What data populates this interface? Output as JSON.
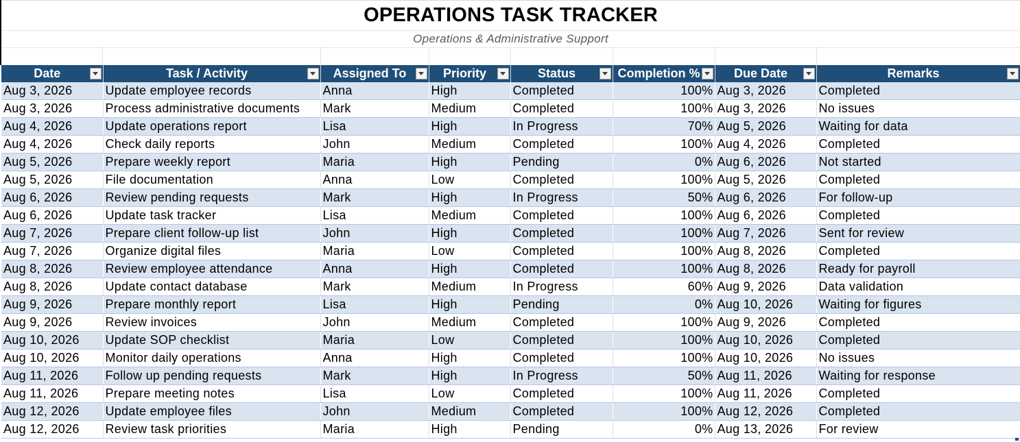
{
  "title": "OPERATIONS TASK TRACKER",
  "subtitle": "Operations & Administrative Support",
  "columns": [
    "Date",
    "Task / Activity",
    "Assigned To",
    "Priority",
    "Status",
    "Completion %",
    "Due Date",
    "Remarks"
  ],
  "rows": [
    [
      "Aug 3, 2026",
      "Update employee records",
      "Anna",
      "High",
      "Completed",
      "100%",
      "Aug 3, 2026",
      "Completed"
    ],
    [
      "Aug 3, 2026",
      "Process administrative documents",
      "Mark",
      "Medium",
      "Completed",
      "100%",
      "Aug 3, 2026",
      "No issues"
    ],
    [
      "Aug 4, 2026",
      "Update operations report",
      "Lisa",
      "High",
      "In Progress",
      "70%",
      "Aug 5, 2026",
      "Waiting for data"
    ],
    [
      "Aug 4, 2026",
      "Check daily reports",
      "John",
      "Medium",
      "Completed",
      "100%",
      "Aug 4, 2026",
      "Completed"
    ],
    [
      "Aug 5, 2026",
      "Prepare weekly report",
      "Maria",
      "High",
      "Pending",
      "0%",
      "Aug 6, 2026",
      "Not started"
    ],
    [
      "Aug 5, 2026",
      "File documentation",
      "Anna",
      "Low",
      "Completed",
      "100%",
      "Aug 5, 2026",
      "Completed"
    ],
    [
      "Aug 6, 2026",
      "Review pending requests",
      "Mark",
      "High",
      "In Progress",
      "50%",
      "Aug 6, 2026",
      "For follow-up"
    ],
    [
      "Aug 6, 2026",
      "Update task tracker",
      "Lisa",
      "Medium",
      "Completed",
      "100%",
      "Aug 6, 2026",
      "Completed"
    ],
    [
      "Aug 7, 2026",
      "Prepare client follow-up list",
      "John",
      "High",
      "Completed",
      "100%",
      "Aug 7, 2026",
      "Sent for review"
    ],
    [
      "Aug 7, 2026",
      "Organize digital files",
      "Maria",
      "Low",
      "Completed",
      "100%",
      "Aug 8, 2026",
      "Completed"
    ],
    [
      "Aug 8, 2026",
      "Review employee attendance",
      "Anna",
      "High",
      "Completed",
      "100%",
      "Aug 8, 2026",
      "Ready for payroll"
    ],
    [
      "Aug 8, 2026",
      "Update contact database",
      "Mark",
      "Medium",
      "In Progress",
      "60%",
      "Aug 9, 2026",
      "Data validation"
    ],
    [
      "Aug 9, 2026",
      "Prepare monthly report",
      "Lisa",
      "High",
      "Pending",
      "0%",
      "Aug 10, 2026",
      "Waiting for figures"
    ],
    [
      "Aug 9, 2026",
      "Review invoices",
      "John",
      "Medium",
      "Completed",
      "100%",
      "Aug 9, 2026",
      "Completed"
    ],
    [
      "Aug 10, 2026",
      "Update SOP checklist",
      "Maria",
      "Low",
      "Completed",
      "100%",
      "Aug 10, 2026",
      "Completed"
    ],
    [
      "Aug 10, 2026",
      "Monitor daily operations",
      "Anna",
      "High",
      "Completed",
      "100%",
      "Aug 10, 2026",
      "No issues"
    ],
    [
      "Aug 11, 2026",
      "Follow up pending requests",
      "Mark",
      "High",
      "In Progress",
      "50%",
      "Aug 11, 2026",
      "Waiting for response"
    ],
    [
      "Aug 11, 2026",
      "Prepare meeting notes",
      "Lisa",
      "Low",
      "Completed",
      "100%",
      "Aug 11, 2026",
      "Completed"
    ],
    [
      "Aug 12, 2026",
      "Update employee files",
      "John",
      "Medium",
      "Completed",
      "100%",
      "Aug 12, 2026",
      "Completed"
    ],
    [
      "Aug 12, 2026",
      "Review task priorities",
      "Maria",
      "High",
      "Pending",
      "0%",
      "Aug 13, 2026",
      "For review"
    ]
  ],
  "colors": {
    "header_bg": "#1f4e79",
    "band_bg": "#dae3f0"
  }
}
